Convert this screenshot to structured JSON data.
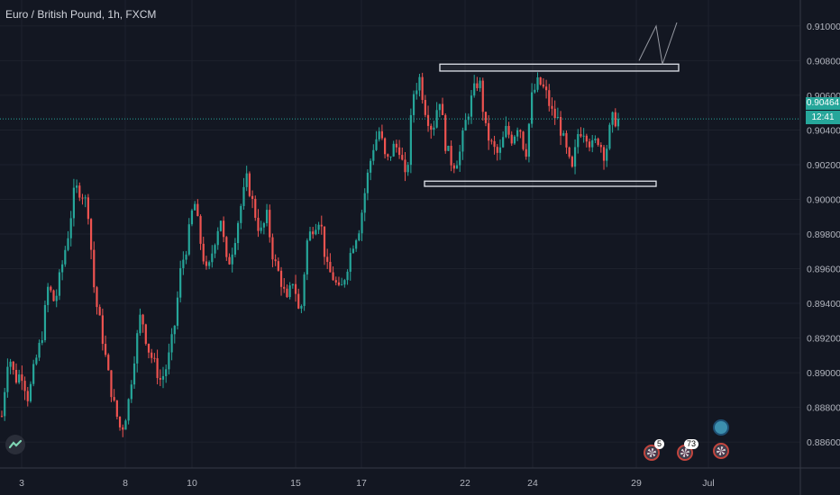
{
  "chart_data": {
    "type": "candlestick",
    "title": "Euro / British Pound, 1h, FXCM",
    "symbol": "Euro / British Pound",
    "interval": "1h",
    "source": "FXCM",
    "y_axis": {
      "min": 0.8845,
      "max": 0.9115,
      "ticks": [
        "0.91000",
        "0.90800",
        "0.90600",
        "0.90400",
        "0.90200",
        "0.90000",
        "0.89800",
        "0.89600",
        "0.89400",
        "0.89200",
        "0.89000",
        "0.88800",
        "0.88600"
      ]
    },
    "x_axis": {
      "ticks": [
        "3",
        "8",
        "10",
        "15",
        "17",
        "22",
        "24",
        "29",
        "Jul"
      ]
    },
    "current_price": "0.90464",
    "countdown": "12:41",
    "price_path": [
      [
        0.8875,
        0.8912
      ],
      [
        0.8896,
        0.89
      ],
      [
        0.8885,
        0.8905
      ],
      [
        0.892,
        0.895
      ],
      [
        0.894,
        0.896
      ],
      [
        0.898,
        0.9006
      ],
      [
        0.9005,
        0.8995
      ],
      [
        0.8945,
        0.8925
      ],
      [
        0.89,
        0.888
      ],
      [
        0.8866,
        0.888
      ],
      [
        0.891,
        0.8935
      ],
      [
        0.8915,
        0.8905
      ],
      [
        0.8895,
        0.8905
      ],
      [
        0.8925,
        0.896
      ],
      [
        0.8975,
        0.9
      ],
      [
        0.8975,
        0.8955
      ],
      [
        0.8975,
        0.899
      ],
      [
        0.896,
        0.8975
      ],
      [
        0.8995,
        0.9012
      ],
      [
        0.8995,
        0.898
      ],
      [
        0.899,
        0.8965
      ],
      [
        0.8955,
        0.894
      ],
      [
        0.8955,
        0.893
      ],
      [
        0.8975,
        0.8985
      ],
      [
        0.899,
        0.896
      ],
      [
        0.8955,
        0.8945
      ],
      [
        0.896,
        0.8975
      ],
      [
        0.8985,
        0.901
      ],
      [
        0.903,
        0.904
      ],
      [
        0.902,
        0.903
      ],
      [
        0.903,
        0.9008
      ],
      [
        0.906,
        0.907
      ],
      [
        0.905,
        0.904
      ],
      [
        0.906,
        0.903
      ],
      [
        0.902,
        0.9025
      ],
      [
        0.9045,
        0.906
      ],
      [
        0.907,
        0.904
      ],
      [
        0.903,
        0.9025
      ],
      [
        0.904,
        0.9035
      ],
      [
        0.9045,
        0.9025
      ],
      [
        0.906,
        0.9068
      ],
      [
        0.9062,
        0.905
      ],
      [
        0.9045,
        0.903
      ],
      [
        0.9015,
        0.904
      ],
      [
        0.904,
        0.903
      ],
      [
        0.9035,
        0.9025
      ],
      [
        0.9046,
        0.9046
      ]
    ],
    "drawings": {
      "resistance_zone": [
        0.9074,
        0.9078
      ],
      "support_zone": [
        0.90075,
        0.90105
      ],
      "projection": [
        [
          0.908,
          0.91
        ],
        [
          0.9078,
          0.9102
        ]
      ]
    },
    "events": [
      {
        "type": "flag",
        "badge": "5"
      },
      {
        "type": "flag",
        "badge": "73"
      },
      {
        "type": "flag",
        "badge": ""
      },
      {
        "type": "blue",
        "badge": ""
      }
    ]
  }
}
